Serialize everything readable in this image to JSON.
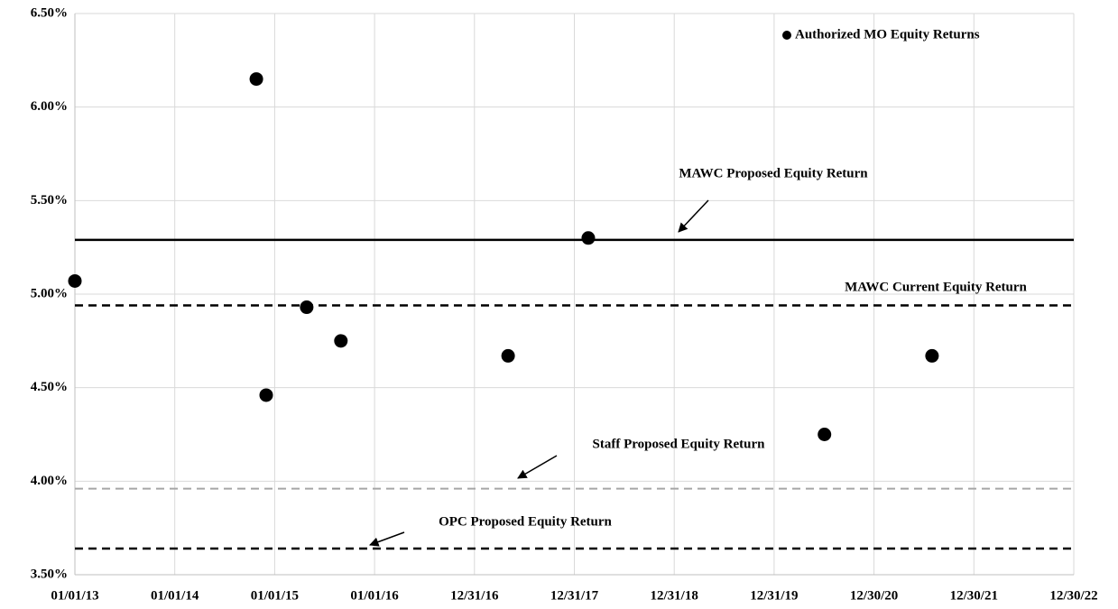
{
  "chart_data": {
    "type": "scatter",
    "series": [
      {
        "name": "Authorized MO Equity Returns",
        "color": "#000000",
        "x": [
          "2013-01-01",
          "2014-10-26",
          "2014-12-01",
          "2015-04-28",
          "2015-08-31",
          "2017-05-03",
          "2018-02-20",
          "2020-07-02",
          "2021-07-30"
        ],
        "values": [
          5.07,
          6.15,
          4.46,
          4.93,
          4.75,
          4.67,
          5.3,
          4.25,
          4.67
        ]
      }
    ],
    "reference_lines": [
      {
        "name": "MAWC Proposed Equity Return",
        "value": 5.29,
        "color": "#000000",
        "style": "solid"
      },
      {
        "name": "MAWC Current Equity Return",
        "value": 4.94,
        "color": "#000000",
        "style": "dashed"
      },
      {
        "name": "Staff Proposed Equity Return",
        "value": 3.96,
        "color": "#a6a6a6",
        "style": "dashed"
      },
      {
        "name": "OPC Proposed Equity Return",
        "value": 3.64,
        "color": "#000000",
        "style": "dashed"
      }
    ],
    "xlim": [
      "2013-01-01",
      "2022-12-30"
    ],
    "xticks": [
      {
        "value": "2013-01-01",
        "label": "01/01/13"
      },
      {
        "value": "2014-01-01",
        "label": "01/01/14"
      },
      {
        "value": "2015-01-01",
        "label": "01/01/15"
      },
      {
        "value": "2016-01-01",
        "label": "01/01/16"
      },
      {
        "value": "2016-12-31",
        "label": "12/31/16"
      },
      {
        "value": "2017-12-31",
        "label": "12/31/17"
      },
      {
        "value": "2018-12-31",
        "label": "12/31/18"
      },
      {
        "value": "2019-12-31",
        "label": "12/31/19"
      },
      {
        "value": "2020-12-30",
        "label": "12/30/20"
      },
      {
        "value": "2021-12-30",
        "label": "12/30/21"
      },
      {
        "value": "2022-12-30",
        "label": "12/30/22"
      }
    ],
    "ylim": [
      3.5,
      6.5
    ],
    "yticks": [
      {
        "value": 3.5,
        "label": "3.50%"
      },
      {
        "value": 4.0,
        "label": "4.00%"
      },
      {
        "value": 4.5,
        "label": "4.50%"
      },
      {
        "value": 5.0,
        "label": "5.00%"
      },
      {
        "value": 5.5,
        "label": "5.50%"
      },
      {
        "value": 6.0,
        "label": "6.00%"
      },
      {
        "value": 6.5,
        "label": "6.50%"
      }
    ],
    "grid": true,
    "legend": "top-right"
  }
}
